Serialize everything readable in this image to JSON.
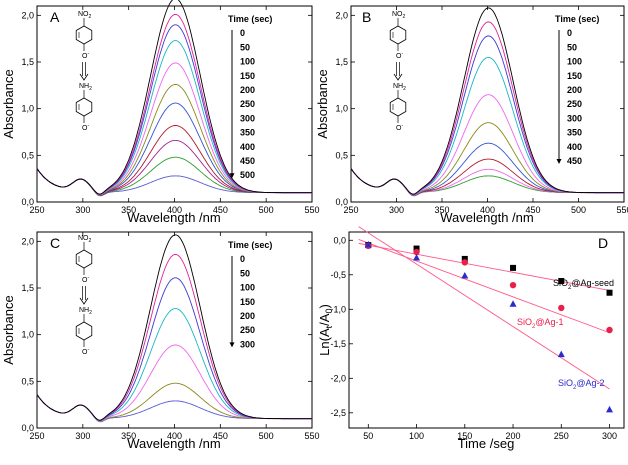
{
  "chart_data": [
    {
      "type": "line",
      "panel": "A",
      "xlabel": "Wavelength /nm",
      "ylabel": "Absorbance",
      "xlim": [
        250,
        550
      ],
      "ylim": [
        0.0,
        2.1
      ],
      "xticks": [
        "250",
        "300",
        "350",
        "400",
        "450",
        "500",
        "550"
      ],
      "yticks": [
        "0,0",
        "0,5",
        "1,0",
        "1,5",
        "2,0"
      ],
      "reaction": {
        "top": "NO2",
        "top_sub": "O-",
        "bottom": "NH2",
        "bottom_sub": "O-"
      },
      "legend_title": "Time (sec)",
      "times": [
        "0",
        "50",
        "100",
        "150",
        "200",
        "250",
        "300",
        "350",
        "400",
        "450",
        "500"
      ],
      "series": [
        {
          "name": "0",
          "peak": 2.08,
          "color": "#000000"
        },
        {
          "name": "50",
          "peak": 1.91,
          "color": "#e0209a"
        },
        {
          "name": "100",
          "peak": 1.8,
          "color": "#3a39d6"
        },
        {
          "name": "150",
          "peak": 1.63,
          "color": "#1bb6c4"
        },
        {
          "name": "200",
          "peak": 1.39,
          "color": "#ef66ef"
        },
        {
          "name": "250",
          "peak": 1.16,
          "color": "#8a8a1a"
        },
        {
          "name": "300",
          "peak": 0.96,
          "color": "#2f55d6"
        },
        {
          "name": "350",
          "peak": 0.72,
          "color": "#b0182c"
        },
        {
          "name": "400",
          "peak": 0.56,
          "color": "#a91f91"
        },
        {
          "name": "450",
          "peak": 0.38,
          "color": "#2ca02c"
        },
        {
          "name": "500",
          "peak": 0.18,
          "color": "#5a5ad6"
        }
      ]
    },
    {
      "type": "line",
      "panel": "B",
      "xlabel": "Wavelength /nm",
      "ylabel": "Absorbance",
      "xlim": [
        250,
        550
      ],
      "ylim": [
        0.0,
        2.1
      ],
      "xticks": [
        "250",
        "300",
        "350",
        "400",
        "450",
        "500",
        "550"
      ],
      "yticks": [
        "0,0",
        "0,5",
        "1,0",
        "1,5",
        "2,0"
      ],
      "reaction": {
        "top": "NO2",
        "top_sub": "O-",
        "bottom": "NH2",
        "bottom_sub": "O-"
      },
      "legend_title": "Time (sec)",
      "times": [
        "0",
        "50",
        "100",
        "150",
        "200",
        "250",
        "300",
        "350",
        "400",
        "450"
      ],
      "series": [
        {
          "name": "0",
          "peak": 1.98,
          "color": "#000000"
        },
        {
          "name": "50",
          "peak": 1.83,
          "color": "#e0209a"
        },
        {
          "name": "100",
          "peak": 1.68,
          "color": "#3a39d6"
        },
        {
          "name": "150",
          "peak": 1.45,
          "color": "#1bb6c4"
        },
        {
          "name": "200",
          "peak": 1.05,
          "color": "#ef66ef"
        },
        {
          "name": "250",
          "peak": 0.75,
          "color": "#8a8a1a"
        },
        {
          "name": "300",
          "peak": 0.53,
          "color": "#2f55d6"
        },
        {
          "name": "350",
          "peak": 0.36,
          "color": "#b0182c"
        },
        {
          "name": "400",
          "peak": 0.25,
          "color": "#ef66ef"
        },
        {
          "name": "450",
          "peak": 0.18,
          "color": "#2ca02c"
        }
      ]
    },
    {
      "type": "line",
      "panel": "C",
      "xlabel": "Wavelength /nm",
      "ylabel": "Absorbance",
      "xlim": [
        250,
        550
      ],
      "ylim": [
        0.0,
        2.1
      ],
      "xticks": [
        "250",
        "300",
        "350",
        "400",
        "450",
        "500",
        "550"
      ],
      "yticks": [
        "0,0",
        "0,5",
        "1,0",
        "1,5",
        "2,0"
      ],
      "reaction": {
        "top": "NO2",
        "top_sub": "O-",
        "bottom": "NH2",
        "bottom_sub": "O-"
      },
      "legend_title": "Time (sec)",
      "times": [
        "0",
        "50",
        "100",
        "150",
        "200",
        "250",
        "300"
      ],
      "series": [
        {
          "name": "0",
          "peak": 1.97,
          "color": "#000000"
        },
        {
          "name": "50",
          "peak": 1.76,
          "color": "#e0209a"
        },
        {
          "name": "100",
          "peak": 1.51,
          "color": "#3a39d6"
        },
        {
          "name": "150",
          "peak": 1.18,
          "color": "#1bb6c4"
        },
        {
          "name": "200",
          "peak": 0.79,
          "color": "#ef66ef"
        },
        {
          "name": "250",
          "peak": 0.38,
          "color": "#8a8a1a"
        },
        {
          "name": "300",
          "peak": 0.19,
          "color": "#5a5ad6"
        }
      ]
    },
    {
      "type": "scatter",
      "panel": "D",
      "xlabel": "Time /seg",
      "ylabel": "Ln(At/A0)",
      "xlim": [
        30,
        315
      ],
      "ylim": [
        -2.72,
        0.12
      ],
      "xticks": [
        "50",
        "100",
        "150",
        "200",
        "250",
        "300"
      ],
      "yticks": [
        "0,0",
        "-0,5",
        "-1,0",
        "-1,5",
        "-2,0",
        "-2,5"
      ],
      "series": [
        {
          "name": "SiO2@Ag-seed",
          "label_main": "SiO",
          "label_sub": "2",
          "label_rest": "@Ag-seed",
          "color": "#000000",
          "marker": "square",
          "x": [
            50,
            100,
            150,
            200,
            250,
            300
          ],
          "y": [
            -0.07,
            -0.12,
            -0.27,
            -0.4,
            -0.59,
            -0.76
          ],
          "fit": {
            "slope": -0.00262,
            "intercept": 0.06
          }
        },
        {
          "name": "SiO2@Ag-1",
          "label_main": "SiO",
          "label_sub": "2",
          "label_rest": "@Ag-1",
          "color": "#e8204a",
          "marker": "circle",
          "x": [
            50,
            100,
            150,
            200,
            250,
            300
          ],
          "y": [
            -0.08,
            -0.17,
            -0.32,
            -0.65,
            -0.98,
            -1.3
          ],
          "fit": {
            "slope": -0.0052,
            "intercept": 0.22
          }
        },
        {
          "name": "SiO2@Ag-2",
          "label_main": "SiO",
          "label_sub": "2",
          "label_rest": "@Ag-2",
          "color": "#2a2ad0",
          "marker": "triangle",
          "x": [
            50,
            100,
            150,
            200,
            250,
            300
          ],
          "y": [
            -0.06,
            -0.25,
            -0.51,
            -0.92,
            -1.65,
            -2.45
          ],
          "fit": {
            "slope": -0.00905,
            "intercept": 0.56
          }
        }
      ]
    }
  ]
}
